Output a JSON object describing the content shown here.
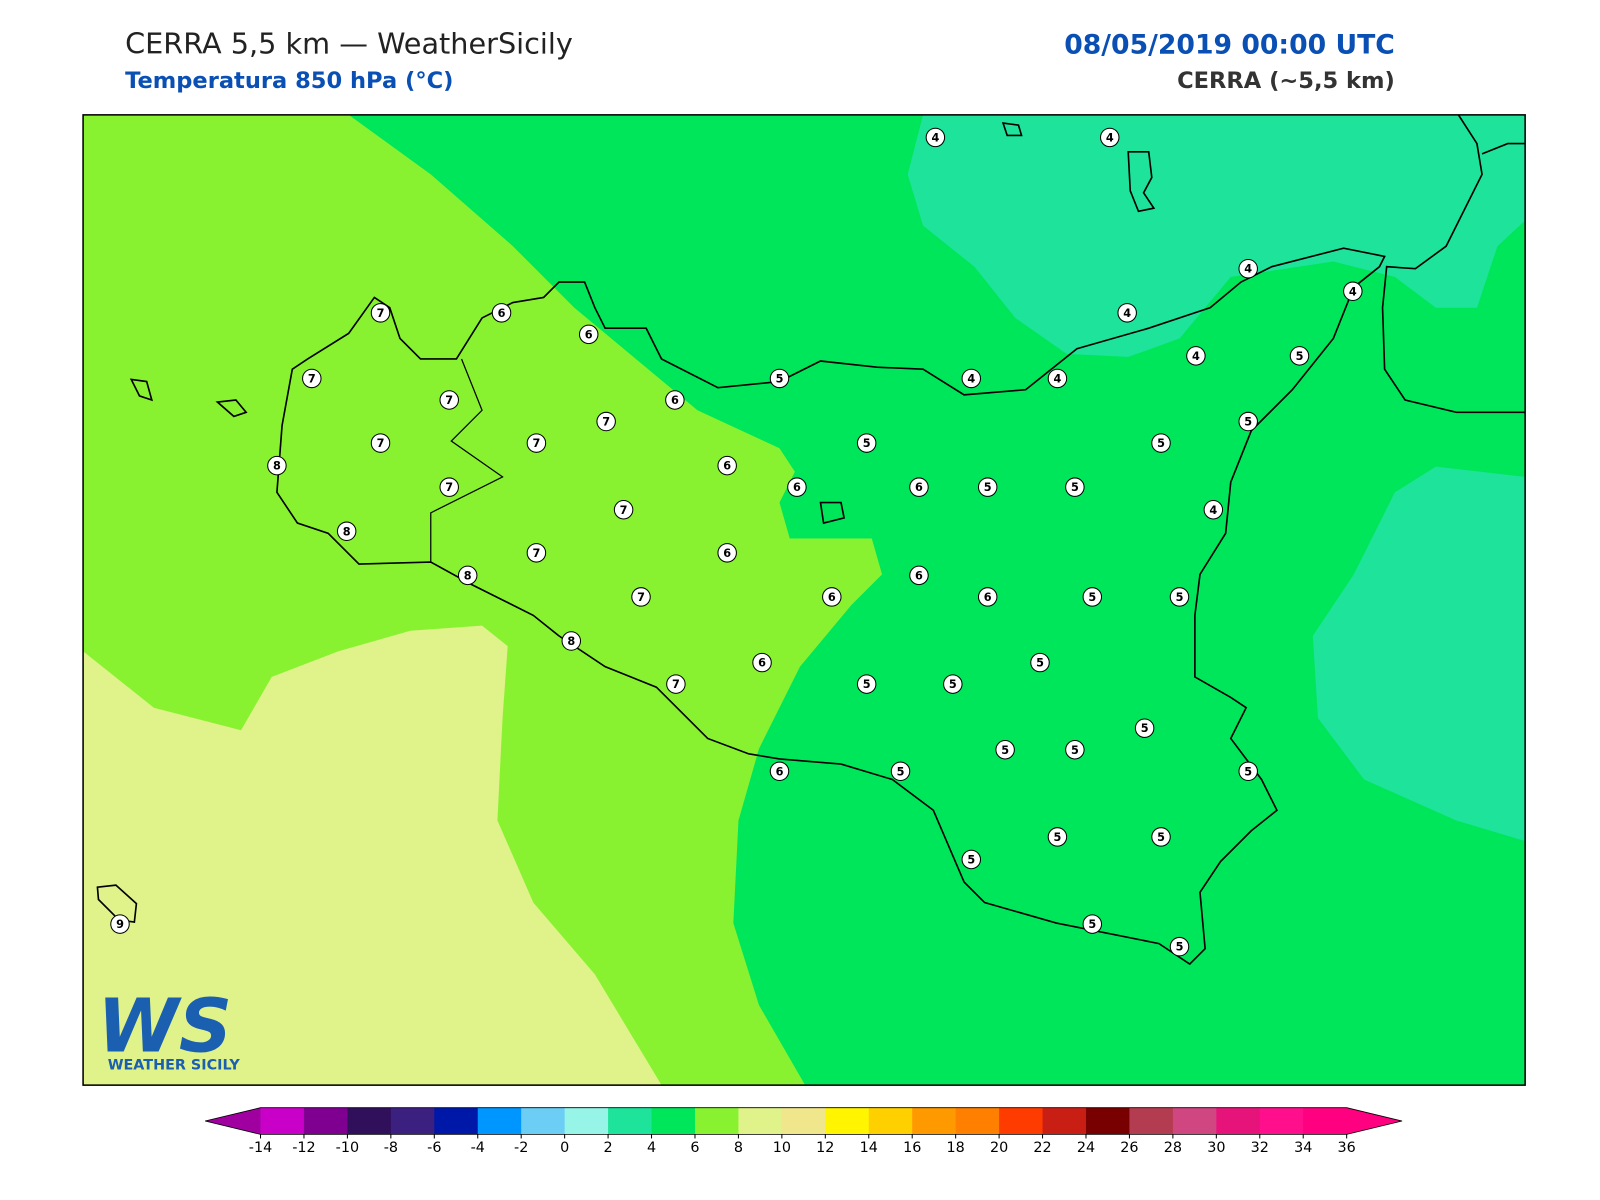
{
  "header": {
    "title": "CERRA 5,5 km — WeatherSicily",
    "subtitle": "Temperatura 850 hPa (°C)",
    "datetime": "08/05/2019 00:00 UTC",
    "model": "CERRA (~5,5 km)"
  },
  "logo": {
    "mark": "WS",
    "name": "WEATHER SICILY"
  },
  "stations": [
    4,
    4,
    4,
    4,
    4,
    7,
    6,
    6,
    4,
    5,
    7,
    5,
    4,
    4,
    7,
    6,
    7,
    5,
    7,
    7,
    5,
    5,
    8,
    6,
    7,
    6,
    6,
    5,
    5,
    7,
    4,
    8,
    7,
    6,
    8,
    6,
    7,
    6,
    6,
    5,
    5,
    8,
    6,
    5,
    7,
    5,
    5,
    5,
    5,
    5,
    6,
    5,
    5,
    5,
    5,
    5,
    5,
    5,
    9
  ],
  "colorbar": {
    "ticks": [
      -14,
      -12,
      -10,
      -8,
      -6,
      -4,
      -2,
      0,
      2,
      4,
      6,
      8,
      10,
      12,
      14,
      16,
      18,
      20,
      22,
      24,
      26,
      28,
      30,
      32,
      34,
      36
    ],
    "colors": [
      "#c800c8",
      "#7f0090",
      "#30105a",
      "#3c2080",
      "#0018a8",
      "#0096ff",
      "#6ccef5",
      "#96f5e6",
      "#1ee39b",
      "#00e65a",
      "#88f231",
      "#e0f28a",
      "#f0e68c",
      "#fff500",
      "#ffd000",
      "#ff9900",
      "#ff7f00",
      "#ff3c00",
      "#c81e14",
      "#780000",
      "#b43c50",
      "#d04680",
      "#e6147a",
      "#ff0f8c",
      "#ff0080"
    ],
    "under": "#a000a0",
    "over": "#ff0080"
  }
}
